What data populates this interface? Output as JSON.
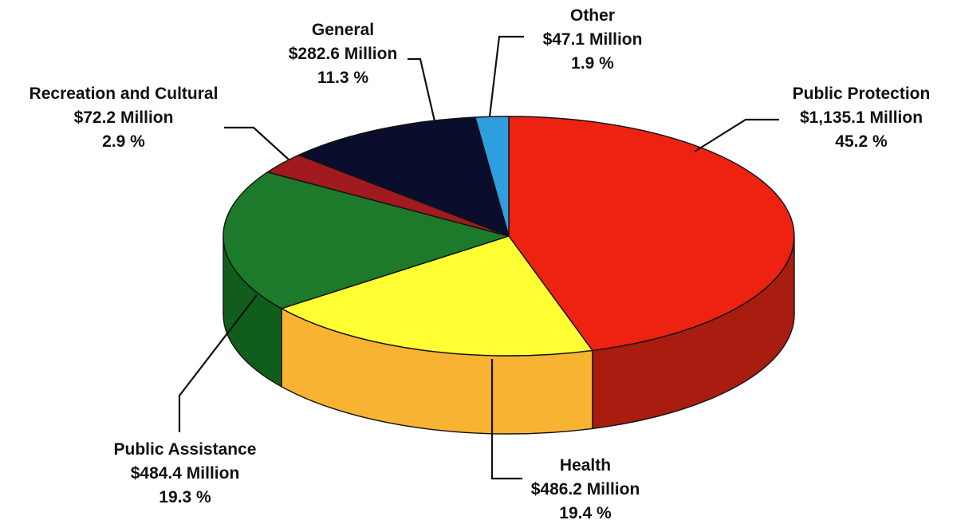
{
  "chart_data": {
    "type": "pie",
    "title": "",
    "slices": [
      {
        "label": "Public Protection",
        "amount": "$1,135.1 Million",
        "value": 1135.1,
        "percent": "45.2 %",
        "color": "#ee2211",
        "side_color": "#a81d10"
      },
      {
        "label": "Health",
        "amount": "$486.2 Million",
        "value": 486.2,
        "percent": "19.4 %",
        "color": "#ffff33",
        "side_color": "#f8b333"
      },
      {
        "label": "Public Assistance",
        "amount": "$484.4 Million",
        "value": 484.4,
        "percent": "19.3 %",
        "color": "#1c7a2a",
        "side_color": "#115e1c"
      },
      {
        "label": "Recreation and Cultural",
        "amount": "$72.2 Million",
        "value": 72.2,
        "percent": "2.9 %",
        "color": "#a11a1f",
        "side_color": "#7a1216"
      },
      {
        "label": "General",
        "amount": "$282.6 Million",
        "value": 282.6,
        "percent": "11.3 %",
        "color": "#0b0d2c",
        "side_color": "#080a20"
      },
      {
        "label": "Other",
        "amount": "$47.1 Million",
        "value": 47.1,
        "percent": "1.9 %",
        "color": "#2e9ee0",
        "side_color": "#1f7ab0"
      }
    ]
  }
}
